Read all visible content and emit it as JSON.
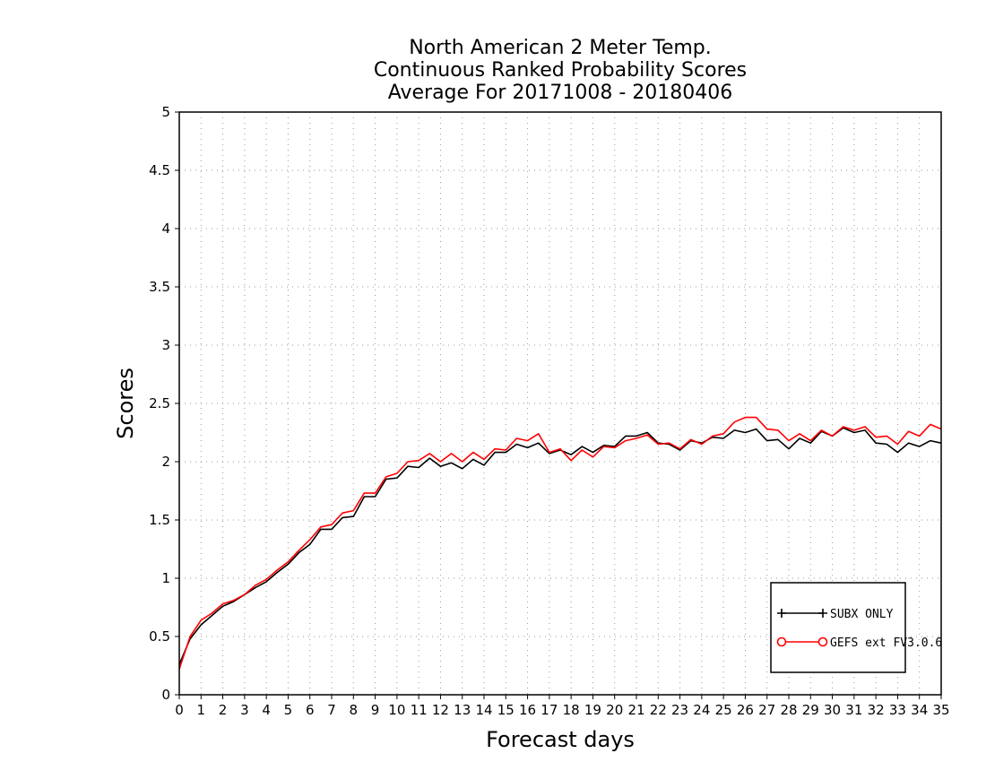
{
  "chart_data": {
    "type": "line",
    "title_lines": [
      "North American 2 Meter Temp.",
      "Continuous Ranked Probability Scores",
      "Average For 20171008 - 20180406"
    ],
    "xlabel": "Forecast days",
    "ylabel": "Scores",
    "xlim": [
      0,
      35
    ],
    "ylim": [
      0,
      5
    ],
    "x_ticks": [
      0,
      1,
      2,
      3,
      4,
      5,
      6,
      7,
      8,
      9,
      10,
      11,
      12,
      13,
      14,
      15,
      16,
      17,
      18,
      19,
      20,
      21,
      22,
      23,
      24,
      25,
      26,
      27,
      28,
      29,
      30,
      31,
      32,
      33,
      34,
      35
    ],
    "y_ticks": [
      0,
      0.5,
      1,
      1.5,
      2,
      2.5,
      3,
      3.5,
      4,
      4.5,
      5
    ],
    "y_tick_labels": [
      "0",
      "0.5",
      "1",
      "1.5",
      "2",
      "2.5",
      "3",
      "3.5",
      "4",
      "4.5",
      "5"
    ],
    "grid": true,
    "legend_position": "bottom-right",
    "series": [
      {
        "name": "SUBX ONLY",
        "color": "#000000",
        "marker": "plus",
        "x": [
          0,
          0.5,
          1,
          1.5,
          2,
          2.5,
          3,
          3.5,
          4,
          4.5,
          5,
          5.5,
          6,
          6.5,
          7,
          7.5,
          8,
          8.5,
          9,
          9.5,
          10,
          10.5,
          11,
          11.5,
          12,
          12.5,
          13,
          13.5,
          14,
          14.5,
          15,
          15.5,
          16,
          16.5,
          17,
          17.5,
          18,
          18.5,
          19,
          19.5,
          20,
          20.5,
          21,
          21.5,
          22,
          22.5,
          23,
          23.5,
          24,
          24.5,
          25,
          25.5,
          26,
          26.5,
          27,
          27.5,
          28,
          28.5,
          29,
          29.5,
          30,
          30.5,
          31,
          31.5,
          32,
          32.5,
          33,
          33.5,
          34,
          34.5,
          35
        ],
        "values": [
          0.26,
          0.48,
          0.6,
          0.68,
          0.76,
          0.8,
          0.86,
          0.92,
          0.97,
          1.05,
          1.12,
          1.22,
          1.29,
          1.42,
          1.42,
          1.52,
          1.53,
          1.7,
          1.7,
          1.85,
          1.86,
          1.96,
          1.95,
          2.03,
          1.96,
          1.99,
          1.94,
          2.02,
          1.97,
          2.08,
          2.08,
          2.15,
          2.12,
          2.16,
          2.07,
          2.1,
          2.06,
          2.13,
          2.08,
          2.14,
          2.13,
          2.22,
          2.22,
          2.25,
          2.16,
          2.15,
          2.1,
          2.18,
          2.16,
          2.21,
          2.2,
          2.27,
          2.25,
          2.28,
          2.18,
          2.19,
          2.11,
          2.2,
          2.16,
          2.26,
          2.22,
          2.29,
          2.25,
          2.27,
          2.16,
          2.15,
          2.08,
          2.16,
          2.13,
          2.18,
          2.16
        ]
      },
      {
        "name": "GEFS ext FV3.0.6",
        "color": "#ff0000",
        "marker": "circle",
        "x": [
          0,
          0.5,
          1,
          1.5,
          2,
          2.5,
          3,
          3.5,
          4,
          4.5,
          5,
          5.5,
          6,
          6.5,
          7,
          7.5,
          8,
          8.5,
          9,
          9.5,
          10,
          10.5,
          11,
          11.5,
          12,
          12.5,
          13,
          13.5,
          14,
          14.5,
          15,
          15.5,
          16,
          16.5,
          17,
          17.5,
          18,
          18.5,
          19,
          19.5,
          20,
          20.5,
          21,
          21.5,
          22,
          22.5,
          23,
          23.5,
          24,
          24.5,
          25,
          25.5,
          26,
          26.5,
          27,
          27.5,
          28,
          28.5,
          29,
          29.5,
          30,
          30.5,
          31,
          31.5,
          32,
          32.5,
          33,
          33.5,
          34,
          34.5,
          35
        ],
        "values": [
          0.22,
          0.5,
          0.64,
          0.7,
          0.78,
          0.81,
          0.86,
          0.94,
          0.99,
          1.07,
          1.14,
          1.24,
          1.33,
          1.44,
          1.46,
          1.56,
          1.58,
          1.73,
          1.73,
          1.87,
          1.9,
          2.0,
          2.01,
          2.07,
          2.0,
          2.07,
          2.0,
          2.08,
          2.02,
          2.11,
          2.1,
          2.2,
          2.18,
          2.24,
          2.08,
          2.11,
          2.01,
          2.1,
          2.04,
          2.13,
          2.12,
          2.18,
          2.2,
          2.23,
          2.15,
          2.16,
          2.11,
          2.19,
          2.15,
          2.22,
          2.24,
          2.34,
          2.38,
          2.38,
          2.28,
          2.27,
          2.18,
          2.24,
          2.18,
          2.27,
          2.22,
          2.3,
          2.27,
          2.3,
          2.21,
          2.22,
          2.15,
          2.26,
          2.22,
          2.32,
          2.28
        ]
      }
    ]
  }
}
